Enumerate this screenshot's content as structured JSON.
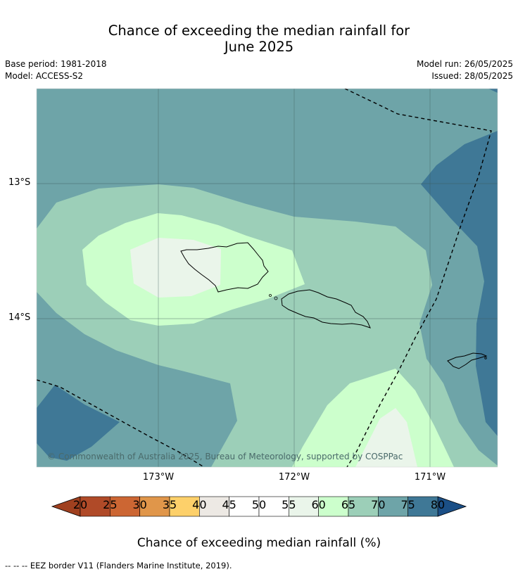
{
  "title_line1": "Chance of exceeding the median rainfall for",
  "title_line2": "June 2025",
  "base_period": "Base period: 1981-2018",
  "model": "Model: ACCESS-S2",
  "model_run": "Model run: 26/05/2025",
  "issued": "Issued: 28/05/2025",
  "lat_ticks": [
    "13°S",
    "14°S"
  ],
  "lon_ticks": [
    "173°W",
    "172°W",
    "171°W"
  ],
  "copyright": "© Commonwealth of Australia 2025, Bureau of Meteorology, supported by COSPPac",
  "colorbar": {
    "title": "Chance of exceeding median rainfall (%)",
    "labels": [
      "20",
      "25",
      "30",
      "35",
      "40",
      "45",
      "50",
      "55",
      "60",
      "65",
      "70",
      "75",
      "80"
    ],
    "colors": [
      "#b04a28",
      "#cc6633",
      "#e0964a",
      "#fdd06a",
      "#ede9e4",
      "#ffffff",
      "#ffffff",
      "#eaf5ea",
      "#ccffcc",
      "#9ccfb8",
      "#6ea4a8",
      "#3f7896"
    ],
    "under_color": "#a0401f",
    "over_color": "#1b4f86"
  },
  "footer": "--  --  -- EEZ border V11 (Flanders Marine Institute, 2019)."
}
